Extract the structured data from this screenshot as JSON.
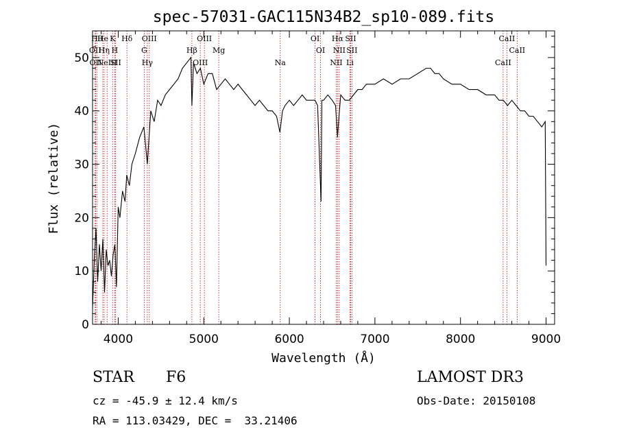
{
  "chart_data": {
    "type": "line",
    "title": "spec-57031-GAC115N34B2_sp10-089.fits",
    "xlabel": "Wavelength (Å)",
    "ylabel": "Flux (relative)",
    "xlim": [
      3700,
      9100
    ],
    "ylim": [
      0,
      55
    ],
    "x_ticks": [
      4000,
      5000,
      6000,
      7000,
      8000,
      9000
    ],
    "y_ticks": [
      0,
      10,
      20,
      30,
      40,
      50
    ],
    "series": [
      {
        "name": "flux",
        "x": [
          3700,
          3720,
          3740,
          3760,
          3780,
          3800,
          3820,
          3840,
          3860,
          3880,
          3900,
          3920,
          3940,
          3960,
          3980,
          4000,
          4020,
          4050,
          4080,
          4100,
          4130,
          4160,
          4200,
          4250,
          4300,
          4340,
          4380,
          4420,
          4460,
          4500,
          4550,
          4600,
          4650,
          4700,
          4750,
          4800,
          4850,
          4861,
          4880,
          4920,
          4960,
          5000,
          5050,
          5100,
          5150,
          5200,
          5250,
          5300,
          5350,
          5400,
          5450,
          5500,
          5550,
          5600,
          5650,
          5700,
          5750,
          5800,
          5850,
          5890,
          5920,
          5950,
          6000,
          6050,
          6100,
          6150,
          6200,
          6250,
          6300,
          6330,
          6370,
          6380,
          6400,
          6450,
          6500,
          6540,
          6563,
          6580,
          6600,
          6650,
          6700,
          6750,
          6800,
          6850,
          6900,
          6950,
          7000,
          7100,
          7200,
          7300,
          7400,
          7500,
          7600,
          7650,
          7700,
          7750,
          7800,
          7900,
          8000,
          8100,
          8200,
          8300,
          8400,
          8450,
          8500,
          8550,
          8600,
          8650,
          8700,
          8750,
          8800,
          8850,
          8900,
          8950,
          8990,
          9000
        ],
        "values": [
          3,
          12,
          18,
          8,
          15,
          10,
          16,
          6,
          14,
          11,
          12,
          9,
          13,
          15,
          7,
          22,
          20,
          25,
          23,
          28,
          26,
          30,
          32,
          35,
          37,
          30,
          40,
          38,
          42,
          41,
          43,
          44,
          45,
          46,
          48,
          49,
          50,
          41,
          49,
          47,
          48,
          45,
          47,
          47,
          44,
          45,
          46,
          45,
          44,
          45,
          44,
          43,
          42,
          41,
          42,
          41,
          40,
          40,
          39,
          36,
          40,
          41,
          42,
          41,
          42,
          43,
          42,
          42,
          42,
          41,
          23,
          42,
          42,
          43,
          42,
          41,
          35,
          39,
          43,
          42,
          42,
          43,
          44,
          44,
          45,
          45,
          45,
          46,
          45,
          46,
          46,
          47,
          48,
          48,
          47,
          47,
          46,
          45,
          45,
          44,
          44,
          43,
          43,
          42,
          42,
          41,
          42,
          41,
          40,
          40,
          39,
          39,
          38,
          37,
          38,
          11
        ]
      }
    ],
    "line_labels": [
      {
        "x": 3750,
        "label": "Hθ"
      },
      {
        "x": 3730,
        "label": "OII"
      },
      {
        "x": 3735,
        "label": "OII"
      },
      {
        "x": 3820,
        "label": "He"
      },
      {
        "x": 3835,
        "label": "Hη"
      },
      {
        "x": 3870,
        "label": "NeIII"
      },
      {
        "x": 3934,
        "label": "K"
      },
      {
        "x": 3960,
        "label": "H"
      },
      {
        "x": 3970,
        "label": "SII"
      },
      {
        "x": 4102,
        "label": "Hδ"
      },
      {
        "x": 4304,
        "label": "G"
      },
      {
        "x": 4340,
        "label": "Hγ"
      },
      {
        "x": 4363,
        "label": "OIII"
      },
      {
        "x": 4861,
        "label": "Hβ"
      },
      {
        "x": 4959,
        "label": "OIII"
      },
      {
        "x": 5007,
        "label": "OIII"
      },
      {
        "x": 5175,
        "label": "Mg"
      },
      {
        "x": 5893,
        "label": "Na"
      },
      {
        "x": 6300,
        "label": "OI"
      },
      {
        "x": 6364,
        "label": "OI"
      },
      {
        "x": 6548,
        "label": "NII"
      },
      {
        "x": 6563,
        "label": "Hα"
      },
      {
        "x": 6583,
        "label": "NII"
      },
      {
        "x": 6708,
        "label": "Li"
      },
      {
        "x": 6716,
        "label": "SII"
      },
      {
        "x": 6731,
        "label": "SII"
      },
      {
        "x": 8498,
        "label": "CaII"
      },
      {
        "x": 8542,
        "label": "CaII"
      },
      {
        "x": 8662,
        "label": "CaII"
      }
    ],
    "line_color": "#cc0000",
    "curve_color": "#000000"
  },
  "info": {
    "class_label": "STAR",
    "subclass": "F6",
    "survey": "LAMOST DR3",
    "redshift": "cz = -45.9 ± 12.4 km/s",
    "obs_date": "Obs-Date: 20150108",
    "coords": "RA = 113.03429, DEC =  33.21406"
  }
}
